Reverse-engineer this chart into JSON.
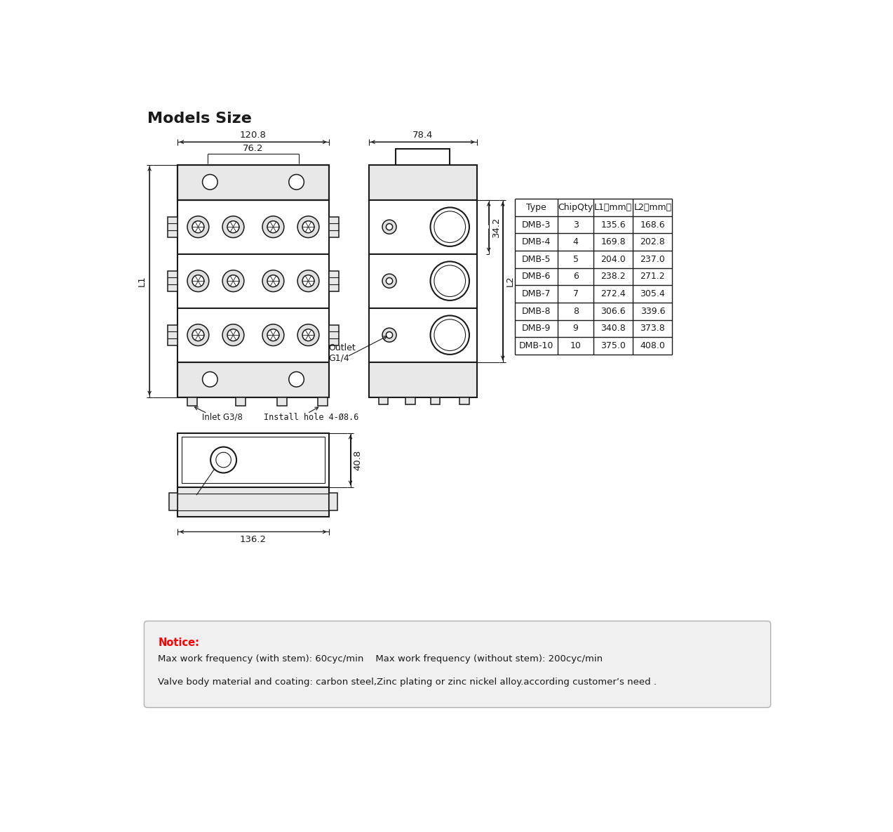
{
  "title": "Models Size",
  "bg_color": "#ffffff",
  "draw_color": "#1a1a1a",
  "table_headers": [
    "Type",
    "ChipQty",
    "L1（mm）",
    "L2（mm）"
  ],
  "table_rows": [
    [
      "DMB-3",
      "3",
      "135.6",
      "168.6"
    ],
    [
      "DMB-4",
      "4",
      "169.8",
      "202.8"
    ],
    [
      "DMB-5",
      "5",
      "204.0",
      "237.0"
    ],
    [
      "DMB-6",
      "6",
      "238.2",
      "271.2"
    ],
    [
      "DMB-7",
      "7",
      "272.4",
      "305.4"
    ],
    [
      "DMB-8",
      "8",
      "306.6",
      "339.6"
    ],
    [
      "DMB-9",
      "9",
      "340.8",
      "373.8"
    ],
    [
      "DMB-10",
      "10",
      "375.0",
      "408.0"
    ]
  ],
  "notice_title": "Notice:",
  "notice_lines": [
    "Max work frequency (with stem): 60cyc/min    Max work frequency (without stem): 200cyc/min",
    "Valve body material and coating: carbon steel,Zinc plating or zinc nickel alloy.according customer’s need ."
  ],
  "dim_120_8": "120.8",
  "dim_76_2": "76.2",
  "dim_78_4": "78.4",
  "dim_34_2": "34.2",
  "dim_L1": "L1",
  "dim_L2": "L2",
  "dim_40_8": "40.8",
  "dim_136_2": "136.2",
  "label_inlet": "Inlet G3/8",
  "label_outlet": "Outlet\nG1/4",
  "label_install": "Install hole 4-Ø8.6"
}
